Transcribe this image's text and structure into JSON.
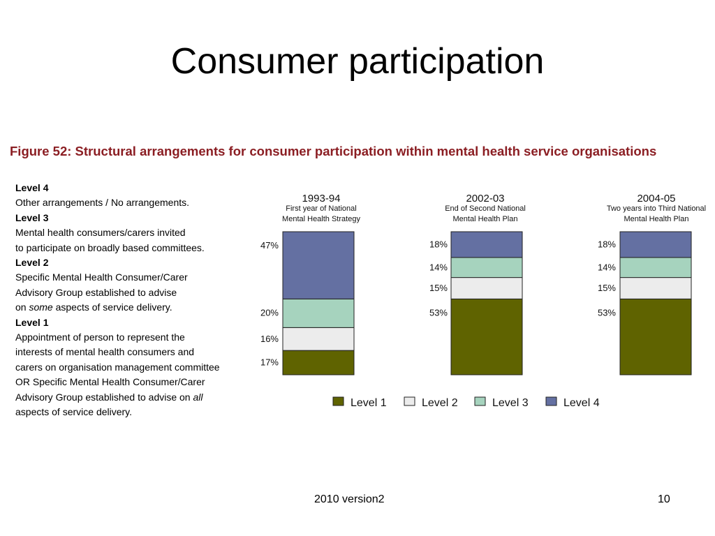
{
  "slide": {
    "title": "Consumer participation",
    "footer": "2010 version2",
    "page_number": "10"
  },
  "figure": {
    "caption": "Figure 52: Structural arrangements for consumer participation within mental health service organisations"
  },
  "levels": [
    {
      "title": "Level 4",
      "description": "Other arrangements / No arrangements."
    },
    {
      "title": "Level 3",
      "description": "Mental health consumers/carers invited\nto participate on broadly based committees."
    },
    {
      "title": "Level 2",
      "description_parts": [
        "Specific Mental Health Consumer/Carer\nAdvisory Group established to advise\non ",
        "some",
        " aspects of service delivery."
      ]
    },
    {
      "title": "Level 1",
      "description_parts": [
        "Appointment of person to represent the\ninterests of mental health consumers and\ncarers on organisation management committee\nOR Specific Mental Health Consumer/Carer\nAdvisory Group established to advise on ",
        "all",
        "\naspects of service delivery."
      ]
    }
  ],
  "chart_data": {
    "type": "bar",
    "stacked": true,
    "normalized": true,
    "categories": [
      "1993-94",
      "2002-03",
      "2004-05"
    ],
    "category_subtitles": [
      [
        "First year of National",
        "Mental Health Strategy"
      ],
      [
        "End of Second National",
        "Mental Health Plan"
      ],
      [
        "Two years into Third National",
        "Mental Health Plan"
      ]
    ],
    "series": [
      {
        "name": "Level 1",
        "values": [
          17,
          53,
          53
        ],
        "labels": [
          "17%",
          "53%",
          "53%"
        ],
        "color": "#5f6300"
      },
      {
        "name": "Level 2",
        "values": [
          16,
          15,
          15
        ],
        "labels": [
          "16%",
          "15%",
          "15%"
        ],
        "color": "#ececec"
      },
      {
        "name": "Level 3",
        "values": [
          20,
          14,
          14
        ],
        "labels": [
          "20%",
          "14%",
          "14%"
        ],
        "color": "#a6d3be"
      },
      {
        "name": "Level 4",
        "values": [
          47,
          18,
          18
        ],
        "labels": [
          "47%",
          "18%",
          "18%"
        ],
        "color": "#6470a2"
      }
    ],
    "legend_position": "bottom"
  }
}
